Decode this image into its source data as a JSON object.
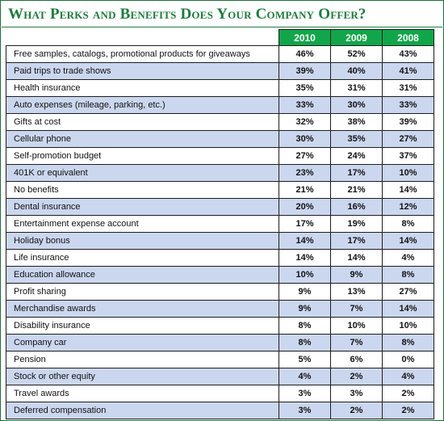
{
  "title": "What Perks and Benefits Does Your Company Offer?",
  "colors": {
    "header_green": "#12a64b",
    "title_green": "#1f7a3e",
    "row_stripe": "#cbd7ef"
  },
  "chart_data": {
    "type": "table",
    "title": "What Perks and Benefits Does Your Company Offer?",
    "columns": [
      "2010",
      "2009",
      "2008"
    ],
    "rows": [
      {
        "label": "Free samples, catalogs, promotional products for giveaways",
        "values": [
          "46%",
          "52%",
          "43%"
        ]
      },
      {
        "label": "Paid trips to trade shows",
        "values": [
          "39%",
          "40%",
          "41%"
        ]
      },
      {
        "label": "Health insurance",
        "values": [
          "35%",
          "31%",
          "31%"
        ]
      },
      {
        "label": "Auto expenses (mileage, parking, etc.)",
        "values": [
          "33%",
          "30%",
          "33%"
        ]
      },
      {
        "label": "Gifts at cost",
        "values": [
          "32%",
          "38%",
          "39%"
        ]
      },
      {
        "label": "Cellular phone",
        "values": [
          "30%",
          "35%",
          "27%"
        ]
      },
      {
        "label": "Self-promotion budget",
        "values": [
          "27%",
          "24%",
          "37%"
        ]
      },
      {
        "label": "401K or equivalent",
        "values": [
          "23%",
          "17%",
          "10%"
        ]
      },
      {
        "label": "No benefits",
        "values": [
          "21%",
          "21%",
          "14%"
        ]
      },
      {
        "label": "Dental insurance",
        "values": [
          "20%",
          "16%",
          "12%"
        ]
      },
      {
        "label": "Entertainment expense account",
        "values": [
          "17%",
          "19%",
          "8%"
        ]
      },
      {
        "label": "Holiday bonus",
        "values": [
          "14%",
          "17%",
          "14%"
        ]
      },
      {
        "label": "Life insurance",
        "values": [
          "14%",
          "14%",
          "4%"
        ]
      },
      {
        "label": "Education allowance",
        "values": [
          "10%",
          "9%",
          "8%"
        ]
      },
      {
        "label": "Profit sharing",
        "values": [
          "9%",
          "13%",
          "27%"
        ]
      },
      {
        "label": "Merchandise awards",
        "values": [
          "9%",
          "7%",
          "14%"
        ]
      },
      {
        "label": "Disability insurance",
        "values": [
          "8%",
          "10%",
          "10%"
        ]
      },
      {
        "label": "Company car",
        "values": [
          "8%",
          "7%",
          "8%"
        ]
      },
      {
        "label": "Pension",
        "values": [
          "5%",
          "6%",
          "0%"
        ]
      },
      {
        "label": "Stock or other equity",
        "values": [
          "4%",
          "2%",
          "4%"
        ]
      },
      {
        "label": "Travel awards",
        "values": [
          "3%",
          "3%",
          "2%"
        ]
      },
      {
        "label": "Deferred compensation",
        "values": [
          "3%",
          "2%",
          "2%"
        ]
      }
    ]
  }
}
